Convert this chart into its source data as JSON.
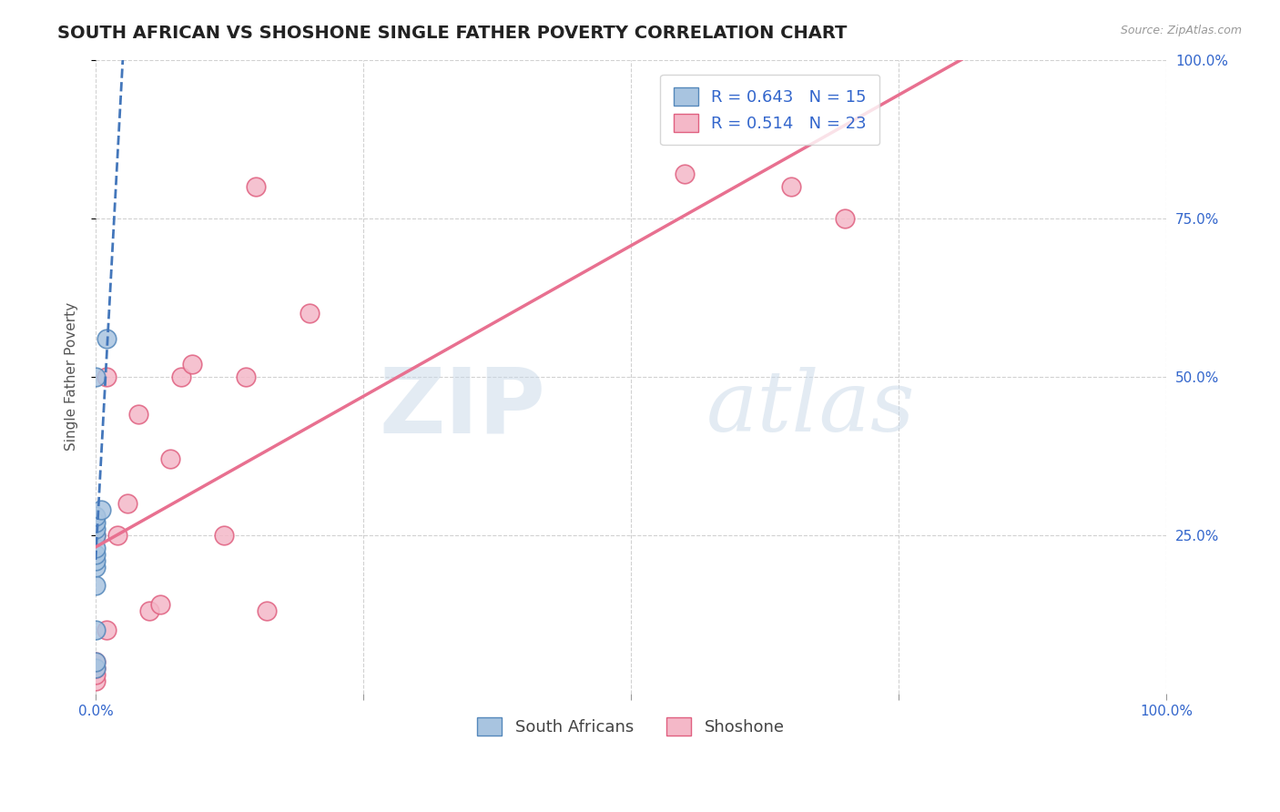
{
  "title": "SOUTH AFRICAN VS SHOSHONE SINGLE FATHER POVERTY CORRELATION CHART",
  "source": "Source: ZipAtlas.com",
  "xlabel": "",
  "ylabel": "Single Father Poverty",
  "xlim": [
    0.0,
    1.0
  ],
  "ylim": [
    0.0,
    1.0
  ],
  "xtick_positions": [
    0.0,
    0.25,
    0.5,
    0.75,
    1.0
  ],
  "xtick_labels": [
    "0.0%",
    "",
    "",
    "",
    "100.0%"
  ],
  "ytick_positions": [
    0.25,
    0.5,
    0.75,
    1.0
  ],
  "ytick_labels": [
    "25.0%",
    "50.0%",
    "75.0%",
    "100.0%"
  ],
  "south_african_x": [
    0.0,
    0.0,
    0.0,
    0.0,
    0.0,
    0.0,
    0.0,
    0.0,
    0.0,
    0.0,
    0.0,
    0.0,
    0.0,
    0.005,
    0.01
  ],
  "south_african_y": [
    0.04,
    0.05,
    0.1,
    0.17,
    0.2,
    0.21,
    0.22,
    0.23,
    0.25,
    0.26,
    0.27,
    0.28,
    0.5,
    0.29,
    0.56
  ],
  "shoshone_x": [
    0.0,
    0.0,
    0.0,
    0.0,
    0.0,
    0.01,
    0.01,
    0.02,
    0.03,
    0.04,
    0.05,
    0.06,
    0.07,
    0.08,
    0.09,
    0.12,
    0.14,
    0.15,
    0.16,
    0.2,
    0.55,
    0.65,
    0.7
  ],
  "shoshone_y": [
    0.02,
    0.03,
    0.04,
    0.05,
    0.25,
    0.1,
    0.5,
    0.25,
    0.3,
    0.44,
    0.13,
    0.14,
    0.37,
    0.5,
    0.52,
    0.25,
    0.5,
    0.8,
    0.13,
    0.6,
    0.82,
    0.8,
    0.75
  ],
  "sa_color": "#a8c4e0",
  "sa_edge_color": "#5588bb",
  "shoshone_color": "#f4b8c8",
  "shoshone_edge_color": "#e06080",
  "sa_line_color": "#4477bb",
  "shoshone_line_color": "#e87090",
  "R_sa": 0.643,
  "N_sa": 15,
  "R_sh": 0.514,
  "N_sh": 23,
  "watermark_zip": "ZIP",
  "watermark_atlas": "atlas",
  "grid_color": "#cccccc",
  "background_color": "#ffffff",
  "title_fontsize": 14,
  "label_fontsize": 11,
  "tick_fontsize": 11,
  "legend_fontsize": 13
}
